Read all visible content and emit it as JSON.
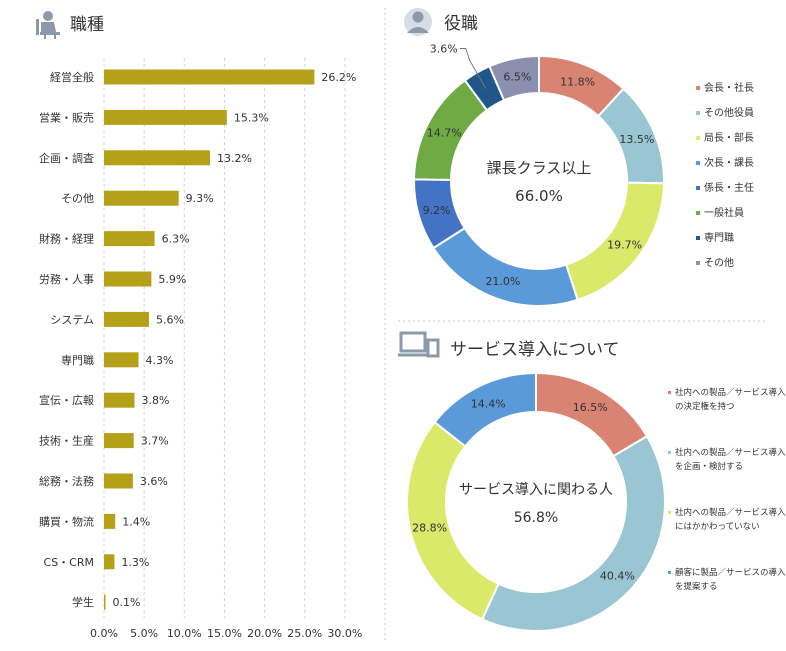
{
  "chart_data": [
    {
      "type": "bar",
      "orientation": "horizontal",
      "title": "職種",
      "icon": "person-at-desk-icon",
      "categories": [
        "経営全般",
        "営業・販売",
        "企画・調査",
        "その他",
        "財務・経理",
        "労務・人事",
        "システム",
        "専門職",
        "宣伝・広報",
        "技術・生産",
        "総務・法務",
        "購買・物流",
        "CS・CRM",
        "学生"
      ],
      "values": [
        26.2,
        15.3,
        13.2,
        9.3,
        6.3,
        5.9,
        5.6,
        4.3,
        3.8,
        3.7,
        3.6,
        1.4,
        1.3,
        0.1
      ],
      "value_labels": [
        "26.2%",
        "15.3%",
        "13.2%",
        "9.3%",
        "6.3%",
        "5.9%",
        "5.6%",
        "4.3%",
        "3.8%",
        "3.7%",
        "3.6%",
        "1.4%",
        "1.3%",
        "0.1%"
      ],
      "xticks": [
        "0.0%",
        "5.0%",
        "10.0%",
        "15.0%",
        "20.0%",
        "25.0%",
        "30.0%"
      ],
      "xlim": [
        0,
        30
      ],
      "grid": true,
      "bar_color": "#b5a019"
    },
    {
      "type": "pie",
      "variant": "donut",
      "title": "役職",
      "icon": "person-bust-icon",
      "center_label": "課長クラス以上",
      "center_value": "66.0%",
      "legend_position": "right",
      "labels": [
        "会長・社長",
        "その他役員",
        "局長・部長",
        "次長・課長",
        "係長・主任",
        "一般社員",
        "専門職",
        "その他"
      ],
      "values": [
        11.8,
        13.5,
        19.7,
        21.0,
        9.2,
        14.7,
        3.6,
        6.5
      ],
      "value_labels": [
        "11.8%",
        "13.5%",
        "19.7%",
        "21.0%",
        "9.2%",
        "14.7%",
        "3.6%",
        "6.5%"
      ],
      "colors": [
        "#d98473",
        "#99c6d2",
        "#dbe96a",
        "#5a9ad8",
        "#4373c4",
        "#6faa45",
        "#21568a",
        "#8c8fb0"
      ]
    },
    {
      "type": "pie",
      "variant": "donut",
      "title": "サービス導入について",
      "icon": "devices-icon",
      "center_label": "サービス導入に関わる人",
      "center_value": "56.8%",
      "legend_position": "right",
      "labels": [
        "社内への製品／サービス導入の決定権を持つ",
        "社内への製品／サービス導入を企画・検討する",
        "社内への製品／サービス導入にはかかわっていない",
        "顧客に製品／サービスの導入を提案する"
      ],
      "legend_lines": [
        [
          "社内への製品／サービス導入",
          "の決定権を持つ"
        ],
        [
          "社内への製品／サービス導入",
          "を企画・検討する"
        ],
        [
          "社内への製品／サービス導入",
          "にはかかわっていない"
        ],
        [
          "顧客に製品／サービスの導入",
          "を提案する"
        ]
      ],
      "values": [
        16.5,
        40.4,
        28.8,
        14.4
      ],
      "value_labels": [
        "16.5%",
        "40.4%",
        "28.8%",
        "14.4%"
      ],
      "colors": [
        "#d98473",
        "#99c6d2",
        "#dbe96a",
        "#5a9ad8"
      ]
    }
  ]
}
